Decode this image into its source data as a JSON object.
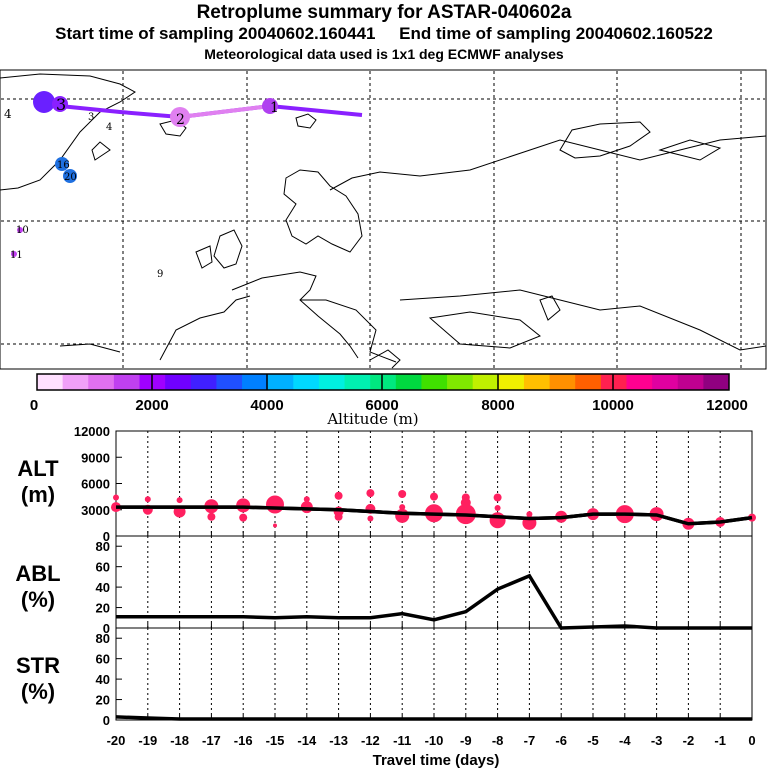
{
  "header": {
    "title": "Retroplume summary for ASTAR-040602a",
    "sampling": "Start time of sampling 20040602.160441     End time of sampling 20040602.160522",
    "met": "Meteorological data used is 1x1 deg ECMWF analyses"
  },
  "map": {
    "labels": [
      "4",
      "1",
      "2",
      "3",
      "3",
      "4",
      "16",
      "20",
      "10",
      "11",
      "9"
    ]
  },
  "colorbar": {
    "ticks": [
      "0",
      "2000",
      "4000",
      "6000",
      "8000",
      "10000",
      "12000"
    ],
    "label": "Altitude (m)",
    "colors": [
      "#ffe0ff",
      "#f0a0f8",
      "#e070f0",
      "#c040f0",
      "#a000ff",
      "#7000ff",
      "#4020ff",
      "#2050ff",
      "#0080ff",
      "#00b0ff",
      "#00d8ff",
      "#00f0e0",
      "#00f0b0",
      "#00e880",
      "#00d840",
      "#40e000",
      "#80e800",
      "#c0f000",
      "#f0f000",
      "#ffc000",
      "#ff9000",
      "#ff6000",
      "#ff2050",
      "#ff0090",
      "#e000a0",
      "#c00090",
      "#900080"
    ]
  },
  "chart_data": [
    {
      "type": "line",
      "panel": "ALT",
      "ylabel": "ALT",
      "yunit": "(m)",
      "yticks": [
        "12000",
        "9000",
        "6000",
        "3000",
        "0"
      ],
      "ylim": [
        0,
        12000
      ],
      "xlim": [
        -20,
        0
      ],
      "x": [
        -20,
        -19,
        -18,
        -17,
        -16,
        -15,
        -14,
        -13,
        -12,
        -11,
        -10,
        -9,
        -8,
        -7,
        -6,
        -5,
        -4,
        -3,
        -2,
        -1,
        0
      ],
      "values": [
        3300,
        3300,
        3300,
        3300,
        3300,
        3200,
        3100,
        3000,
        2800,
        2600,
        2500,
        2400,
        2200,
        2000,
        2100,
        2500,
        2500,
        2400,
        1400,
        1600,
        2100
      ]
    },
    {
      "type": "line",
      "panel": "ABL",
      "ylabel": "ABL",
      "yunit": "(%)",
      "yticks": [
        "80",
        "60",
        "40",
        "20",
        "0"
      ],
      "ylim": [
        0,
        90
      ],
      "xlim": [
        -20,
        0
      ],
      "x": [
        -20,
        -19,
        -18,
        -17,
        -16,
        -15,
        -14,
        -13,
        -12,
        -11,
        -10,
        -9,
        -8,
        -7,
        -6,
        -5,
        -4,
        -3,
        -2,
        -1,
        0
      ],
      "values": [
        11,
        11,
        11,
        11,
        11,
        10,
        11,
        10,
        10,
        14,
        8,
        16,
        38,
        51,
        0,
        1,
        2,
        0,
        0,
        0,
        0
      ]
    },
    {
      "type": "line",
      "panel": "STR",
      "ylabel": "STR",
      "yunit": "(%)",
      "yticks": [
        "80",
        "60",
        "40",
        "20",
        "0"
      ],
      "ylim": [
        0,
        90
      ],
      "xlim": [
        -20,
        0
      ],
      "x": [
        -20,
        -19,
        -18,
        -17,
        -16,
        -15,
        -14,
        -13,
        -12,
        -11,
        -10,
        -9,
        -8,
        -7,
        -6,
        -5,
        -4,
        -3,
        -2,
        -1,
        0
      ],
      "values": [
        3,
        2,
        1,
        1,
        1,
        1,
        1,
        1,
        1,
        1,
        1,
        1,
        1,
        1,
        1,
        1,
        1,
        1,
        1,
        1,
        1
      ],
      "xticks": [
        "-20",
        "-19",
        "-18",
        "-17",
        "-16",
        "-15",
        "-14",
        "-13",
        "-12",
        "-11",
        "-10",
        "-9",
        "-8",
        "-7",
        "-6",
        "-5",
        "-4",
        "-3",
        "-2",
        "-1",
        "0"
      ],
      "xlabel": "Travel time (days)"
    }
  ]
}
